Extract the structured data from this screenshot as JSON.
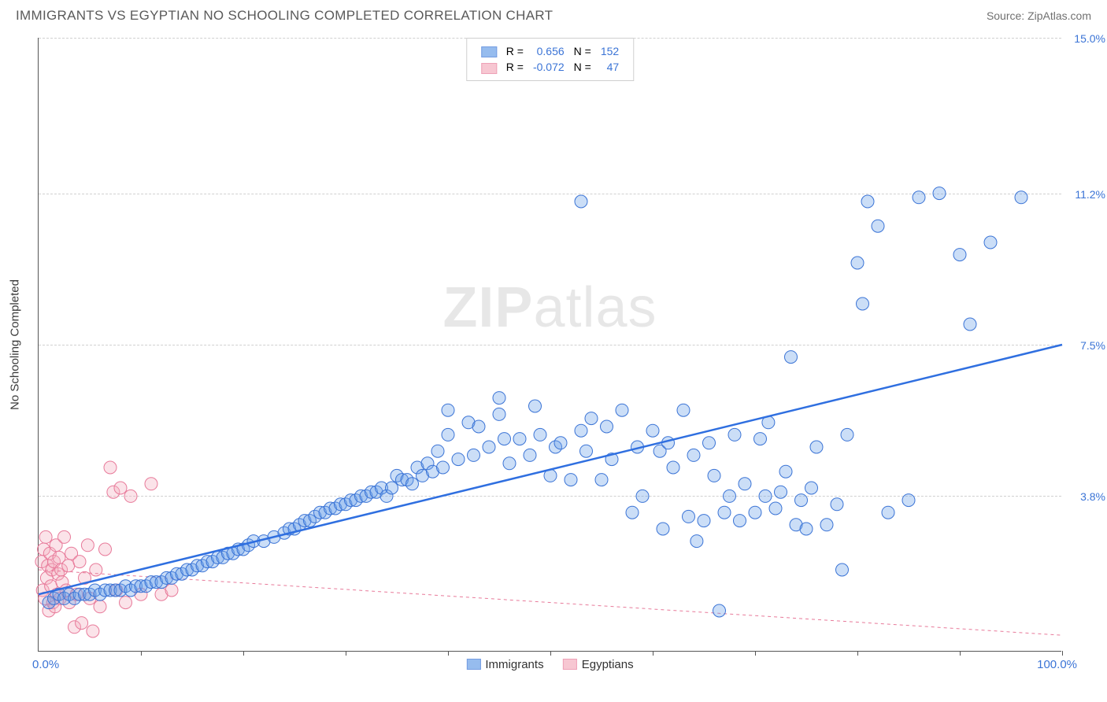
{
  "header": {
    "title": "IMMIGRANTS VS EGYPTIAN NO SCHOOLING COMPLETED CORRELATION CHART",
    "source_prefix": "Source: ",
    "source_name": "ZipAtlas.com"
  },
  "watermark": {
    "bold": "ZIP",
    "light": "atlas"
  },
  "chart": {
    "type": "scatter",
    "background_color": "#ffffff",
    "grid_color": "#d0d0d0",
    "axis_color": "#555555",
    "ylabel": "No Schooling Completed",
    "xlim": [
      0,
      100
    ],
    "ylim": [
      0,
      15
    ],
    "ytick_positions": [
      3.8,
      7.5,
      11.2,
      15.0
    ],
    "ytick_labels": [
      "3.8%",
      "7.5%",
      "11.2%",
      "15.0%"
    ],
    "xtick_positions": [
      10,
      20,
      30,
      40,
      50,
      60,
      70,
      80,
      90,
      100
    ],
    "x_min_label": "0.0%",
    "x_max_label": "100.0%",
    "marker_radius": 8,
    "marker_fill_opacity": 0.35,
    "series": {
      "immigrants": {
        "label": "Immigrants",
        "color": "#6aa0e8",
        "stroke": "#3b74d6",
        "r_label": "R =",
        "r_value": "0.656",
        "n_label": "N =",
        "n_value": "152",
        "trend": {
          "x1": 0,
          "y1": 1.4,
          "x2": 100,
          "y2": 7.5,
          "color": "#2f6fe0",
          "width": 2.5,
          "dash": "none"
        },
        "points": [
          [
            1,
            1.2
          ],
          [
            1.5,
            1.3
          ],
          [
            2,
            1.4
          ],
          [
            2.5,
            1.3
          ],
          [
            3,
            1.4
          ],
          [
            3.5,
            1.3
          ],
          [
            4,
            1.4
          ],
          [
            4.5,
            1.4
          ],
          [
            5,
            1.4
          ],
          [
            5.5,
            1.5
          ],
          [
            6,
            1.4
          ],
          [
            6.5,
            1.5
          ],
          [
            7,
            1.5
          ],
          [
            7.5,
            1.5
          ],
          [
            8,
            1.5
          ],
          [
            8.5,
            1.6
          ],
          [
            9,
            1.5
          ],
          [
            9.5,
            1.6
          ],
          [
            10,
            1.6
          ],
          [
            10.5,
            1.6
          ],
          [
            11,
            1.7
          ],
          [
            11.5,
            1.7
          ],
          [
            12,
            1.7
          ],
          [
            12.5,
            1.8
          ],
          [
            13,
            1.8
          ],
          [
            13.5,
            1.9
          ],
          [
            14,
            1.9
          ],
          [
            14.5,
            2.0
          ],
          [
            15,
            2.0
          ],
          [
            15.5,
            2.1
          ],
          [
            16,
            2.1
          ],
          [
            16.5,
            2.2
          ],
          [
            17,
            2.2
          ],
          [
            17.5,
            2.3
          ],
          [
            18,
            2.3
          ],
          [
            18.5,
            2.4
          ],
          [
            19,
            2.4
          ],
          [
            19.5,
            2.5
          ],
          [
            20,
            2.5
          ],
          [
            20.5,
            2.6
          ],
          [
            21,
            2.7
          ],
          [
            22,
            2.7
          ],
          [
            23,
            2.8
          ],
          [
            24,
            2.9
          ],
          [
            24.5,
            3.0
          ],
          [
            25,
            3.0
          ],
          [
            25.5,
            3.1
          ],
          [
            26,
            3.2
          ],
          [
            26.5,
            3.2
          ],
          [
            27,
            3.3
          ],
          [
            27.5,
            3.4
          ],
          [
            28,
            3.4
          ],
          [
            28.5,
            3.5
          ],
          [
            29,
            3.5
          ],
          [
            29.5,
            3.6
          ],
          [
            30,
            3.6
          ],
          [
            30.5,
            3.7
          ],
          [
            31,
            3.7
          ],
          [
            31.5,
            3.8
          ],
          [
            32,
            3.8
          ],
          [
            32.5,
            3.9
          ],
          [
            33,
            3.9
          ],
          [
            33.5,
            4.0
          ],
          [
            34,
            3.8
          ],
          [
            34.5,
            4.0
          ],
          [
            35,
            4.3
          ],
          [
            35.5,
            4.2
          ],
          [
            36,
            4.2
          ],
          [
            36.5,
            4.1
          ],
          [
            37,
            4.5
          ],
          [
            37.5,
            4.3
          ],
          [
            38,
            4.6
          ],
          [
            38.5,
            4.4
          ],
          [
            39,
            4.9
          ],
          [
            39.5,
            4.5
          ],
          [
            40,
            5.3
          ],
          [
            41,
            4.7
          ],
          [
            42,
            5.6
          ],
          [
            42.5,
            4.8
          ],
          [
            43,
            5.5
          ],
          [
            44,
            5.0
          ],
          [
            45,
            5.8
          ],
          [
            45.5,
            5.2
          ],
          [
            46,
            4.6
          ],
          [
            47,
            5.2
          ],
          [
            48,
            4.8
          ],
          [
            48.5,
            6.0
          ],
          [
            49,
            5.3
          ],
          [
            50,
            4.3
          ],
          [
            50.5,
            5.0
          ],
          [
            51,
            5.1
          ],
          [
            52,
            4.2
          ],
          [
            53,
            5.4
          ],
          [
            53.5,
            4.9
          ],
          [
            54,
            5.7
          ],
          [
            55,
            4.2
          ],
          [
            55.5,
            5.5
          ],
          [
            56,
            4.7
          ],
          [
            57,
            5.9
          ],
          [
            58,
            3.4
          ],
          [
            58.5,
            5.0
          ],
          [
            59,
            3.8
          ],
          [
            60,
            5.4
          ],
          [
            60.7,
            4.9
          ],
          [
            61,
            3.0
          ],
          [
            61.5,
            5.1
          ],
          [
            62,
            4.5
          ],
          [
            63,
            5.9
          ],
          [
            63.5,
            3.3
          ],
          [
            64,
            4.8
          ],
          [
            64.3,
            2.7
          ],
          [
            65,
            3.2
          ],
          [
            65.5,
            5.1
          ],
          [
            66,
            4.3
          ],
          [
            66.5,
            1.0
          ],
          [
            67,
            3.4
          ],
          [
            67.5,
            3.8
          ],
          [
            68,
            5.3
          ],
          [
            68.5,
            3.2
          ],
          [
            69,
            4.1
          ],
          [
            70,
            3.4
          ],
          [
            70.5,
            5.2
          ],
          [
            71,
            3.8
          ],
          [
            71.3,
            5.6
          ],
          [
            72,
            3.5
          ],
          [
            72.5,
            3.9
          ],
          [
            73,
            4.4
          ],
          [
            73.5,
            7.2
          ],
          [
            74,
            3.1
          ],
          [
            74.5,
            3.7
          ],
          [
            75,
            3.0
          ],
          [
            75.5,
            4.0
          ],
          [
            76,
            5.0
          ],
          [
            77,
            3.1
          ],
          [
            78,
            3.6
          ],
          [
            78.5,
            2.0
          ],
          [
            79,
            5.3
          ],
          [
            80,
            9.5
          ],
          [
            80.5,
            8.5
          ],
          [
            81,
            11.0
          ],
          [
            82,
            10.4
          ],
          [
            83,
            3.4
          ],
          [
            85,
            3.7
          ],
          [
            86,
            11.1
          ],
          [
            88,
            11.2
          ],
          [
            90,
            9.7
          ],
          [
            91,
            8.0
          ],
          [
            93,
            10.0
          ],
          [
            96,
            11.1
          ],
          [
            53,
            11.0
          ],
          [
            40,
            5.9
          ],
          [
            45,
            6.2
          ]
        ]
      },
      "egyptians": {
        "label": "Egyptians",
        "color": "#f4b0c0",
        "stroke": "#e87a9a",
        "r_label": "R =",
        "r_value": "-0.072",
        "n_label": "N =",
        "n_value": "47",
        "trend": {
          "x1": 0,
          "y1": 2.0,
          "x2": 100,
          "y2": 0.4,
          "color": "#e87a9a",
          "width": 1,
          "dash": "4,4"
        },
        "points": [
          [
            0.3,
            2.2
          ],
          [
            0.4,
            1.5
          ],
          [
            0.5,
            2.5
          ],
          [
            0.6,
            1.3
          ],
          [
            0.7,
            2.8
          ],
          [
            0.8,
            1.8
          ],
          [
            0.9,
            2.1
          ],
          [
            1.0,
            1.0
          ],
          [
            1.1,
            2.4
          ],
          [
            1.2,
            1.6
          ],
          [
            1.3,
            2.0
          ],
          [
            1.4,
            1.2
          ],
          [
            1.5,
            2.2
          ],
          [
            1.6,
            1.1
          ],
          [
            1.7,
            2.6
          ],
          [
            1.8,
            1.4
          ],
          [
            1.9,
            1.9
          ],
          [
            2.0,
            2.3
          ],
          [
            2.1,
            1.3
          ],
          [
            2.2,
            2.0
          ],
          [
            2.3,
            1.7
          ],
          [
            2.5,
            2.8
          ],
          [
            2.7,
            1.5
          ],
          [
            2.9,
            2.1
          ],
          [
            3.0,
            1.2
          ],
          [
            3.2,
            2.4
          ],
          [
            3.5,
            0.6
          ],
          [
            3.7,
            1.4
          ],
          [
            4.0,
            2.2
          ],
          [
            4.2,
            0.7
          ],
          [
            4.5,
            1.8
          ],
          [
            4.8,
            2.6
          ],
          [
            5.0,
            1.3
          ],
          [
            5.3,
            0.5
          ],
          [
            5.6,
            2.0
          ],
          [
            6.0,
            1.1
          ],
          [
            6.5,
            2.5
          ],
          [
            7.0,
            4.5
          ],
          [
            7.3,
            3.9
          ],
          [
            7.6,
            1.5
          ],
          [
            8.0,
            4.0
          ],
          [
            8.5,
            1.2
          ],
          [
            9.0,
            3.8
          ],
          [
            10.0,
            1.4
          ],
          [
            11,
            4.1
          ],
          [
            12,
            1.4
          ],
          [
            13,
            1.5
          ]
        ]
      }
    }
  }
}
